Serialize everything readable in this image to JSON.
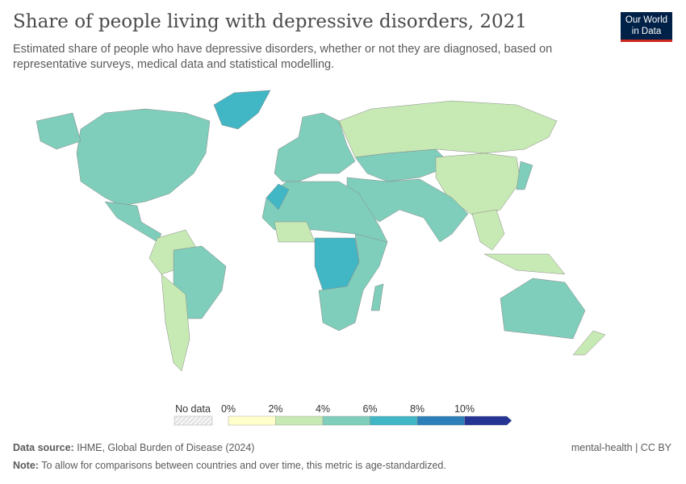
{
  "header": {
    "title": "Share of people living with depressive disorders, 2021",
    "subtitle": "Estimated share of people who have depressive disorders, whether or not they are diagnosed, based on representative surveys, medical data and statistical modelling.",
    "logo_line1": "Our World",
    "logo_line2": "in Data"
  },
  "chart_data": {
    "type": "choropleth",
    "title": "Share of people living with depressive disorders, 2021",
    "legend": {
      "no_data_label": "No data",
      "tick_labels": [
        "0%",
        "2%",
        "4%",
        "6%",
        "8%",
        "10%"
      ],
      "bins": [
        [
          0,
          2
        ],
        [
          2,
          4
        ],
        [
          4,
          6
        ],
        [
          6,
          8
        ],
        [
          8,
          10
        ],
        [
          10,
          null
        ]
      ],
      "colors": [
        "#ffffcc",
        "#c7e9b4",
        "#7fcdbb",
        "#41b6c4",
        "#2c7fb8",
        "#253494"
      ],
      "no_data_color": "#e8e8e8",
      "placement": "bottom"
    },
    "region_values": [
      5,
      5,
      6.5,
      5,
      3,
      5,
      3,
      5,
      3,
      5,
      3,
      5,
      3,
      3,
      5,
      5,
      6.5,
      3,
      7,
      5,
      5,
      5,
      3
    ]
  },
  "footer": {
    "source_label": "Data source:",
    "source_text": "IHME, Global Burden of Disease (2024)",
    "note_label": "Note:",
    "note_text": "To allow for comparisons between countries and over time, this metric is age-standardized.",
    "license": "mental-health | CC BY"
  }
}
